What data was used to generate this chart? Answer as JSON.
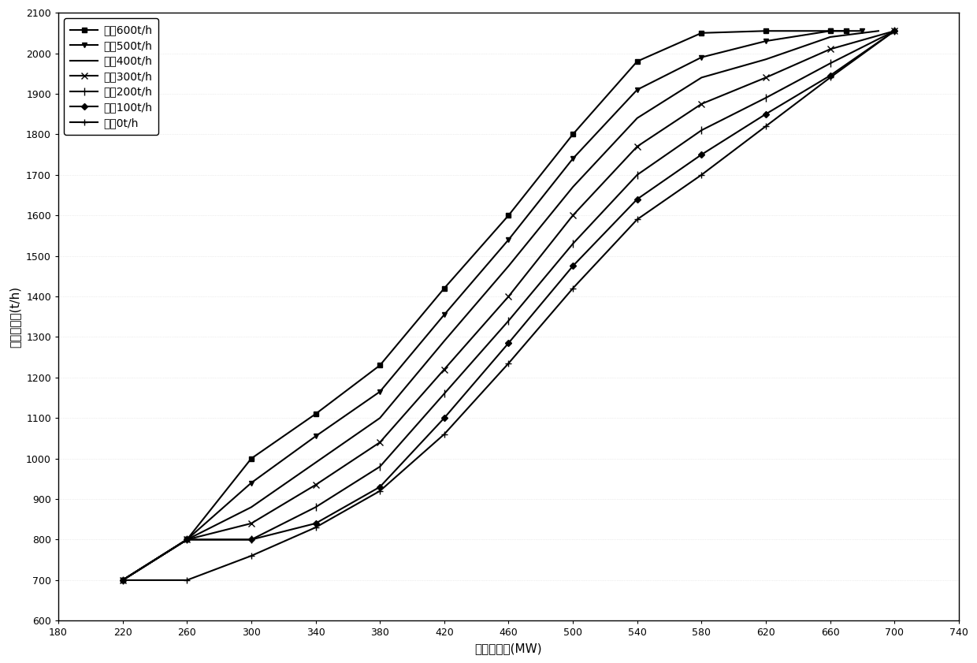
{
  "xlabel": "发电机功率(MW)",
  "ylabel": "主蜗汽流量(t/h)",
  "xlim": [
    180,
    740
  ],
  "ylim": [
    600,
    2100
  ],
  "xticks": [
    180,
    220,
    260,
    300,
    340,
    380,
    420,
    460,
    500,
    540,
    580,
    620,
    660,
    700,
    740
  ],
  "yticks": [
    600,
    700,
    800,
    900,
    1000,
    1100,
    1200,
    1300,
    1400,
    1500,
    1600,
    1700,
    1800,
    1900,
    2000,
    2100
  ],
  "series": [
    {
      "label": "采暖600t/h",
      "marker": "s",
      "x": [
        220,
        260,
        300,
        340,
        380,
        420,
        460,
        500,
        540,
        580,
        620,
        660,
        670
      ],
      "y": [
        700,
        800,
        1000,
        1110,
        1230,
        1420,
        1600,
        1800,
        1980,
        2050,
        2055,
        2055,
        2055
      ]
    },
    {
      "label": "采暖500t/h",
      "marker": "v",
      "x": [
        220,
        260,
        300,
        340,
        380,
        420,
        460,
        500,
        540,
        580,
        620,
        660,
        680
      ],
      "y": [
        700,
        800,
        940,
        1055,
        1165,
        1355,
        1540,
        1740,
        1910,
        1990,
        2030,
        2055,
        2055
      ]
    },
    {
      "label": "采暖400t/h",
      "marker": null,
      "x": [
        220,
        260,
        300,
        340,
        380,
        420,
        460,
        500,
        540,
        580,
        620,
        660,
        690
      ],
      "y": [
        700,
        800,
        880,
        990,
        1100,
        1290,
        1475,
        1670,
        1840,
        1940,
        1985,
        2040,
        2055
      ]
    },
    {
      "label": "采暖300t/h",
      "marker": "x",
      "x": [
        220,
        260,
        300,
        340,
        380,
        420,
        460,
        500,
        540,
        580,
        620,
        660,
        700
      ],
      "y": [
        700,
        800,
        840,
        935,
        1040,
        1220,
        1400,
        1600,
        1770,
        1875,
        1940,
        2010,
        2055
      ]
    },
    {
      "label": "采暖200t/h",
      "marker": "|",
      "x": [
        220,
        260,
        300,
        340,
        380,
        420,
        460,
        500,
        540,
        580,
        620,
        660,
        700
      ],
      "y": [
        700,
        800,
        800,
        880,
        980,
        1160,
        1340,
        1530,
        1700,
        1810,
        1890,
        1975,
        2055
      ]
    },
    {
      "label": "采暖100t/h",
      "marker": "D",
      "x": [
        220,
        260,
        300,
        340,
        380,
        420,
        460,
        500,
        540,
        580,
        620,
        660,
        700
      ],
      "y": [
        700,
        800,
        800,
        840,
        930,
        1100,
        1285,
        1475,
        1640,
        1750,
        1850,
        1945,
        2055
      ]
    },
    {
      "label": "采暖0t/h",
      "marker": "+",
      "x": [
        220,
        260,
        300,
        340,
        380,
        420,
        460,
        500,
        540,
        580,
        620,
        660,
        700
      ],
      "y": [
        700,
        700,
        760,
        830,
        920,
        1060,
        1235,
        1420,
        1590,
        1700,
        1820,
        1940,
        2055
      ]
    }
  ],
  "line_color": "#000000",
  "background_color": "#ffffff",
  "grid_color": "#bbbbbb",
  "markersize": 5,
  "linewidth": 1.5
}
